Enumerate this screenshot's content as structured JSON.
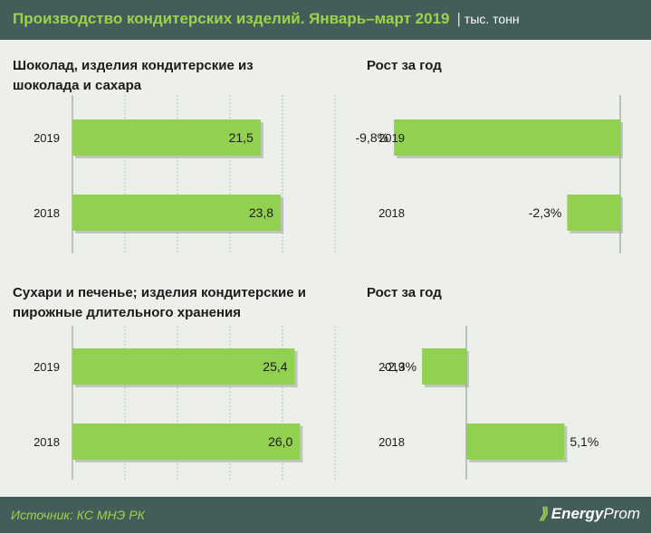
{
  "header": {
    "title": "Производство кондитерских изделий. Январь–март 2019",
    "separator": "|",
    "unit": "тыс. тонн"
  },
  "footer": {
    "source": "Источник: КС МНЭ РК",
    "logo_bold": "Energy",
    "logo_light": "Prom"
  },
  "colors": {
    "bar": "#92d050",
    "header_bg": "#435e5a",
    "title": "#9ed24a"
  },
  "chart_data": [
    {
      "type": "bar",
      "orientation": "horizontal",
      "title": "Шоколад,  изделия кондитерские  из шоколада  и сахара",
      "title_lines": [
        "Шоколад,  изделия кондитерские  из",
        "шоколада  и сахара"
      ],
      "categories": [
        "2019",
        "2018"
      ],
      "values": [
        21.5,
        23.8
      ],
      "labels": [
        "21,5",
        "23,8"
      ],
      "xlim": [
        0,
        30
      ]
    },
    {
      "type": "bar",
      "orientation": "horizontal",
      "title": "Рост за год",
      "title_lines": [
        "Рост за год"
      ],
      "categories": [
        "2019",
        "2018"
      ],
      "values": [
        -9.8,
        -2.3
      ],
      "labels": [
        "-9,8%",
        "-2,3%"
      ],
      "xlim": [
        -10,
        0
      ]
    },
    {
      "type": "bar",
      "orientation": "horizontal",
      "title": "Сухари и печенье; изделия кондитерские и пирожные длительного хранения",
      "title_lines": [
        "Сухари и печенье; изделия кондитерские и",
        "пирожные длительного хранения"
      ],
      "categories": [
        "2019",
        "2018"
      ],
      "values": [
        25.4,
        26.0
      ],
      "labels": [
        "25,4",
        "26,0"
      ],
      "xlim": [
        0,
        30
      ]
    },
    {
      "type": "bar",
      "orientation": "horizontal",
      "title": "Рост за год",
      "title_lines": [
        "Рост за год"
      ],
      "categories": [
        "2019",
        "2018"
      ],
      "values": [
        -2.3,
        5.1
      ],
      "labels": [
        "-2,3%",
        "5,1%"
      ],
      "xlim": [
        -4,
        8
      ]
    }
  ]
}
